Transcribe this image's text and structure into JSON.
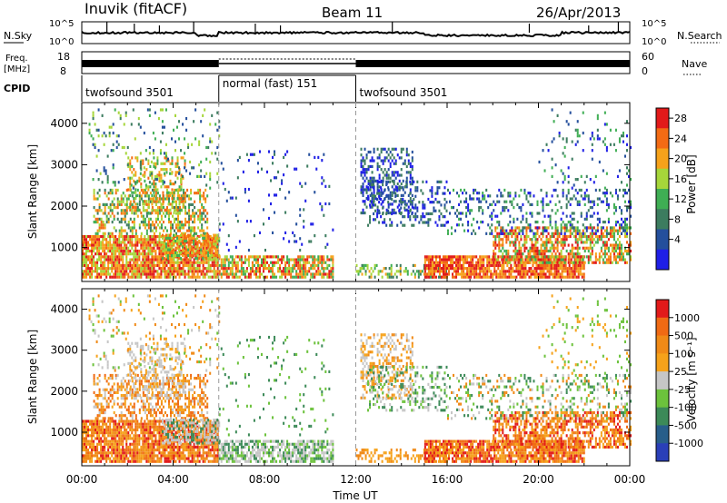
{
  "header": {
    "station": "Inuvik (fitACF)",
    "beam": "Beam 11",
    "date": "26/Apr/2013"
  },
  "panels": {
    "nsky_label": "N.Sky",
    "nsky_ticks": [
      "10^5",
      "10^0"
    ],
    "nsearch_label": "N.Search",
    "nsearch_ticks": [
      "10^5",
      "10^0"
    ],
    "freq_label": "Freq.",
    "freq_unit": "[MHz]",
    "freq_ticks": [
      "18",
      "8"
    ],
    "nave_label": "Nave",
    "nave_ticks": [
      "60",
      "0"
    ],
    "cpid_label": "CPID",
    "cpid_segments": [
      {
        "label": "twofsound 3501",
        "start": 0,
        "end": 6
      },
      {
        "label": "normal (fast) 151",
        "start": 6,
        "end": 12
      },
      {
        "label": "twofsound 3501",
        "start": 12,
        "end": 24
      }
    ]
  },
  "colors": {
    "power": [
      "#1f1fe6",
      "#244f9c",
      "#3c7c5f",
      "#3fae54",
      "#a6d63a",
      "#f6a21a",
      "#f36b14",
      "#e21a1a"
    ],
    "velocity": [
      "#2a3fb8",
      "#285e8a",
      "#3c8a58",
      "#6cc23c",
      "#c6c6c6",
      "#f6a21a",
      "#f08a17",
      "#f06a14",
      "#e21a1a"
    ]
  },
  "chart_data": [
    {
      "type": "heatmap",
      "title": "",
      "xlabel": "",
      "ylabel": "Slant Range [km]",
      "x_ticks": [
        "00:00",
        "04:00",
        "08:00",
        "12:00",
        "16:00",
        "20:00",
        "00:00"
      ],
      "xlim_hours": [
        0,
        24
      ],
      "ylim": [
        180,
        4500
      ],
      "y_ticks": [
        1000,
        2000,
        3000,
        4000
      ],
      "colorbar_label": "Power [dB]",
      "colorbar_ticks": [
        "28",
        "24",
        "20",
        "16",
        "12",
        "8",
        "4"
      ],
      "colorbar_range": [
        0,
        30
      ],
      "grid": false
    },
    {
      "type": "heatmap",
      "title": "",
      "xlabel": "Time UT",
      "ylabel": "Slant Range [km]",
      "x_ticks": [
        "00:00",
        "04:00",
        "08:00",
        "12:00",
        "16:00",
        "20:00",
        "00:00"
      ],
      "xlim_hours": [
        0,
        24
      ],
      "ylim": [
        180,
        4500
      ],
      "y_ticks": [
        1000,
        2000,
        3000,
        4000
      ],
      "colorbar_label": "Velocity [m s⁻¹]",
      "colorbar_ticks": [
        "1000",
        "500",
        "100",
        "25",
        "-25",
        "-100",
        "-500",
        "-1000"
      ],
      "grid": false
    }
  ]
}
